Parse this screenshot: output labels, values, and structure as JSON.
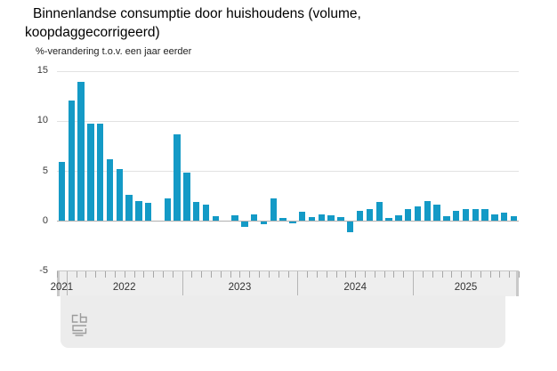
{
  "header": {
    "title": "Binnenlandse consumptie door huishoudens (volume, koopdaggecorrigeerd)",
    "subtitle": "%-verandering t.o.v. een jaar eerder"
  },
  "chart_data": {
    "type": "bar",
    "title": "Binnenlandse consumptie door huishoudens (volume, koopdaggecorrigeerd)",
    "ylabel": "%-verandering t.o.v. een jaar eerder",
    "xlabel": "",
    "x_interval": "month",
    "x_start": "2021-12",
    "values": [
      5.9,
      12.0,
      13.9,
      9.7,
      9.7,
      6.2,
      5.2,
      2.6,
      2.0,
      1.8,
      0.0,
      2.3,
      8.7,
      4.8,
      1.9,
      1.6,
      0.5,
      0.0,
      0.6,
      -0.5,
      0.7,
      -0.2,
      2.3,
      0.3,
      -0.1,
      0.9,
      0.4,
      0.7,
      0.6,
      0.4,
      -1.0,
      1.0,
      1.2,
      1.9,
      0.3,
      0.6,
      1.2,
      1.5,
      2.0,
      1.6,
      0.5,
      1.0,
      1.2,
      1.2,
      1.2,
      0.7,
      0.8,
      0.5
    ],
    "ylim": [
      -5,
      15
    ],
    "y_ticks": [
      15,
      10,
      5,
      0,
      -5
    ],
    "grid": true,
    "legend": "none",
    "year_labels": [
      "2021",
      "2022",
      "2023",
      "2024",
      "2025"
    ],
    "year_boundary_slots": [
      1,
      13,
      25,
      37
    ],
    "bar_color": "#149ac6"
  },
  "footer": {
    "logo_icon": "cbs-logo"
  }
}
